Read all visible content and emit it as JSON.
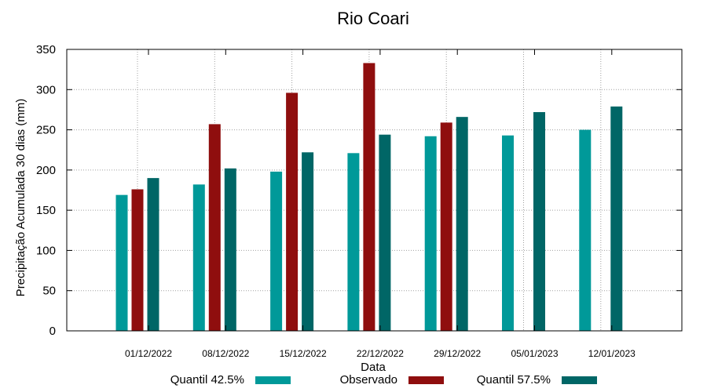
{
  "chart_data": {
    "type": "bar",
    "title": "Rio Coari",
    "xlabel": "Data",
    "ylabel": "Precipitação Acumulada 30 dias (mm)",
    "ylim": [
      0,
      350
    ],
    "yticks": [
      0,
      50,
      100,
      150,
      200,
      250,
      300,
      350
    ],
    "grid": true,
    "legend": "bottom",
    "categories": [
      "01/12/2022",
      "08/12/2022",
      "15/12/2022",
      "22/12/2022",
      "29/12/2022",
      "05/01/2023",
      "12/01/2023"
    ],
    "series": [
      {
        "name": "Quantil 42.5%",
        "color": "#009999",
        "values": [
          169,
          182,
          198,
          221,
          242,
          243,
          250
        ]
      },
      {
        "name": "Observado",
        "color": "#8f0e0e",
        "values": [
          176,
          257,
          296,
          333,
          259,
          null,
          null
        ]
      },
      {
        "name": "Quantil 57.5%",
        "color": "#006666",
        "values": [
          190,
          202,
          222,
          244,
          266,
          272,
          279
        ]
      }
    ]
  }
}
